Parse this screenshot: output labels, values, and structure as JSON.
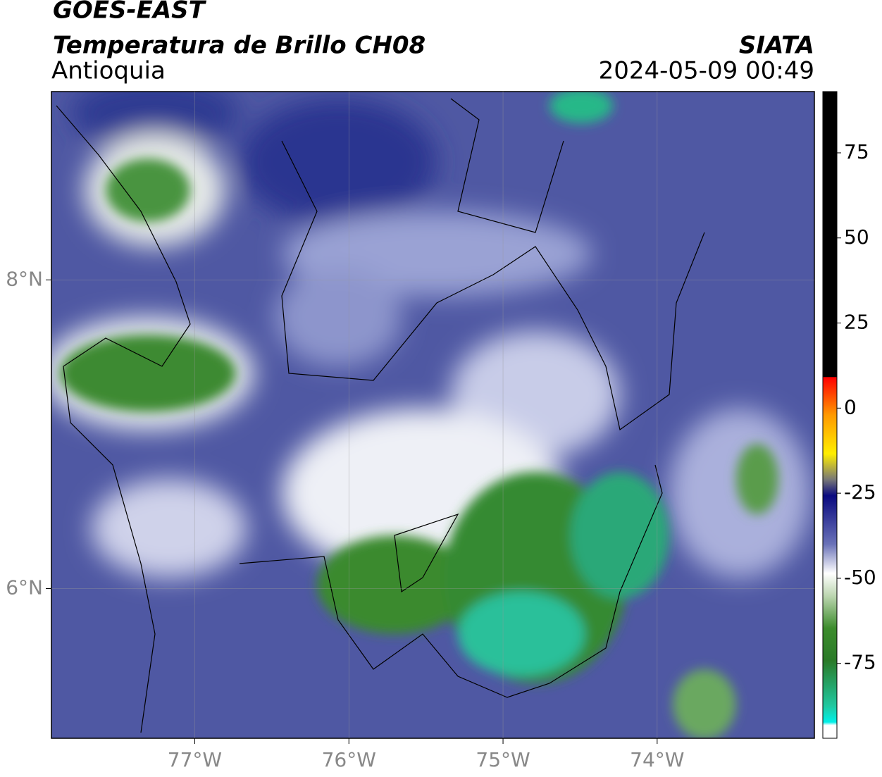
{
  "header": {
    "title": "GOES-EAST",
    "subtitle": "Temperatura de Brillo CH08",
    "region": "Antioquia",
    "source": "SIATA",
    "datetime": "2024-05-09 00:49"
  },
  "map": {
    "xlim": [
      -77.93,
      -72.98
    ],
    "ylim": [
      5.03,
      9.22
    ],
    "xticks": [
      {
        "value": -77,
        "label": "77°W"
      },
      {
        "value": -76,
        "label": "76°W"
      },
      {
        "value": -75,
        "label": "75°W"
      },
      {
        "value": -74,
        "label": "74°W"
      }
    ],
    "yticks": [
      {
        "value": 8,
        "label": "8°N"
      },
      {
        "value": 6,
        "label": "6°N"
      }
    ],
    "grid": true
  },
  "colorbar": {
    "lim": [
      -97,
      93
    ],
    "ticks": [
      75,
      50,
      25,
      0,
      -25,
      -50,
      -75
    ]
  }
}
